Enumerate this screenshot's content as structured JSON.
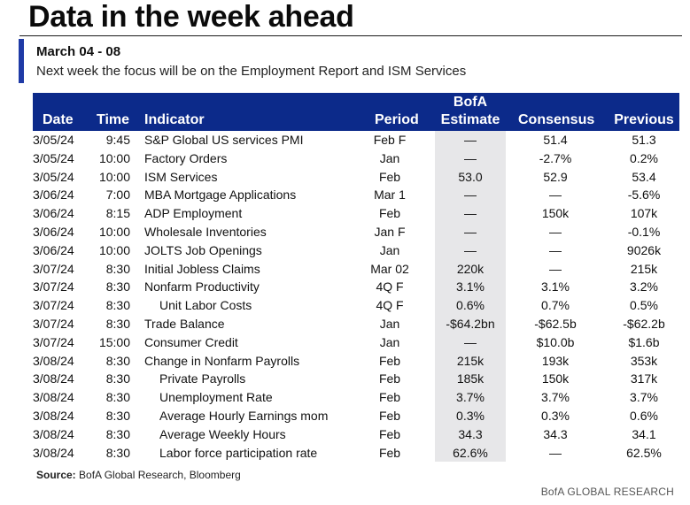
{
  "title": "Data in the week ahead",
  "subheader": "March 04 - 08",
  "subtitle": "Next week the focus will be on the Employment Report and ISM Services",
  "headers": {
    "date": "Date",
    "time": "Time",
    "indicator": "Indicator",
    "period": "Period",
    "bofa_line1": "BofA",
    "bofa_line2": "Estimate",
    "consensus": "Consensus",
    "previous": "Previous"
  },
  "rows": [
    {
      "date": "3/05/24",
      "time": "9:45",
      "indicator": "S&P Global US services PMI",
      "indent": 0,
      "period": "Feb F",
      "bofa": "—",
      "consensus": "51.4",
      "previous": "51.3"
    },
    {
      "date": "3/05/24",
      "time": "10:00",
      "indicator": "Factory Orders",
      "indent": 0,
      "period": "Jan",
      "bofa": "—",
      "consensus": "-2.7%",
      "previous": "0.2%"
    },
    {
      "date": "3/05/24",
      "time": "10:00",
      "indicator": "ISM Services",
      "indent": 0,
      "period": "Feb",
      "bofa": "53.0",
      "consensus": "52.9",
      "previous": "53.4"
    },
    {
      "date": "3/06/24",
      "time": "7:00",
      "indicator": "MBA Mortgage Applications",
      "indent": 0,
      "period": "Mar 1",
      "bofa": "—",
      "consensus": "—",
      "previous": "-5.6%"
    },
    {
      "date": "3/06/24",
      "time": "8:15",
      "indicator": "ADP Employment",
      "indent": 0,
      "period": "Feb",
      "bofa": "—",
      "consensus": "150k",
      "previous": "107k"
    },
    {
      "date": "3/06/24",
      "time": "10:00",
      "indicator": "Wholesale Inventories",
      "indent": 0,
      "period": "Jan F",
      "bofa": "—",
      "consensus": "—",
      "previous": "-0.1%"
    },
    {
      "date": "3/06/24",
      "time": "10:00",
      "indicator": "JOLTS Job Openings",
      "indent": 0,
      "period": "Jan",
      "bofa": "—",
      "consensus": "—",
      "previous": "9026k"
    },
    {
      "date": "3/07/24",
      "time": "8:30",
      "indicator": "Initial Jobless Claims",
      "indent": 0,
      "period": "Mar 02",
      "bofa": "220k",
      "consensus": "—",
      "previous": "215k"
    },
    {
      "date": "3/07/24",
      "time": "8:30",
      "indicator": "Nonfarm Productivity",
      "indent": 0,
      "period": "4Q F",
      "bofa": "3.1%",
      "consensus": "3.1%",
      "previous": "3.2%"
    },
    {
      "date": "3/07/24",
      "time": "8:30",
      "indicator": "Unit Labor Costs",
      "indent": 1,
      "period": "4Q F",
      "bofa": "0.6%",
      "consensus": "0.7%",
      "previous": "0.5%"
    },
    {
      "date": "3/07/24",
      "time": "8:30",
      "indicator": "Trade Balance",
      "indent": 0,
      "period": "Jan",
      "bofa": "-$64.2bn",
      "consensus": "-$62.5b",
      "previous": "-$62.2b"
    },
    {
      "date": "3/07/24",
      "time": "15:00",
      "indicator": "Consumer Credit",
      "indent": 0,
      "period": "Jan",
      "bofa": "—",
      "consensus": "$10.0b",
      "previous": "$1.6b"
    },
    {
      "date": "3/08/24",
      "time": "8:30",
      "indicator": "Change in Nonfarm Payrolls",
      "indent": 0,
      "period": "Feb",
      "bofa": "215k",
      "consensus": "193k",
      "previous": "353k"
    },
    {
      "date": "3/08/24",
      "time": "8:30",
      "indicator": "Private Payrolls",
      "indent": 1,
      "period": "Feb",
      "bofa": "185k",
      "consensus": "150k",
      "previous": "317k"
    },
    {
      "date": "3/08/24",
      "time": "8:30",
      "indicator": "Unemployment Rate",
      "indent": 1,
      "period": "Feb",
      "bofa": "3.7%",
      "consensus": "3.7%",
      "previous": "3.7%"
    },
    {
      "date": "3/08/24",
      "time": "8:30",
      "indicator": "Average Hourly Earnings mom",
      "indent": 1,
      "period": "Feb",
      "bofa": "0.3%",
      "consensus": "0.3%",
      "previous": "0.6%"
    },
    {
      "date": "3/08/24",
      "time": "8:30",
      "indicator": "Average Weekly Hours",
      "indent": 1,
      "period": "Feb",
      "bofa": "34.3",
      "consensus": "34.3",
      "previous": "34.1"
    },
    {
      "date": "3/08/24",
      "time": "8:30",
      "indicator": "Labor force participation rate",
      "indent": 1,
      "period": "Feb",
      "bofa": "62.6%",
      "consensus": "—",
      "previous": "62.5%"
    }
  ],
  "source_label": "Source:",
  "source_text": " BofA Global Research, Bloomberg",
  "brand": "BofA GLOBAL RESEARCH",
  "colors": {
    "header_bg": "#0c2a8a",
    "accent_bar": "#1f3aa6",
    "bofa_column_bg": "#e7e7e9"
  }
}
